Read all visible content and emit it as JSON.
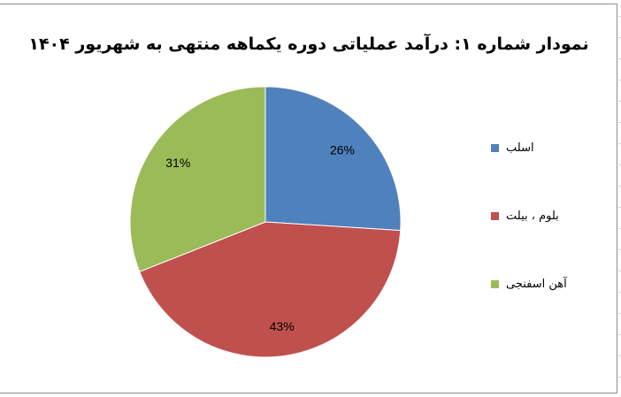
{
  "chart_data": {
    "type": "pie",
    "title": "نمودار شماره ۱: درآمد عملیاتی دوره یکماهه منتهی به شهریور ۱۴۰۴",
    "categories": [
      "اسلب",
      "بلوم ، بیلت",
      "آهن اسفنجی"
    ],
    "values": [
      26,
      43,
      31
    ],
    "data_labels": [
      "26%",
      "43%",
      "31%"
    ],
    "colors": [
      "#4f81bd",
      "#c0504d",
      "#9bbb59"
    ],
    "start": "top, clockwise",
    "legend_position": "right"
  }
}
